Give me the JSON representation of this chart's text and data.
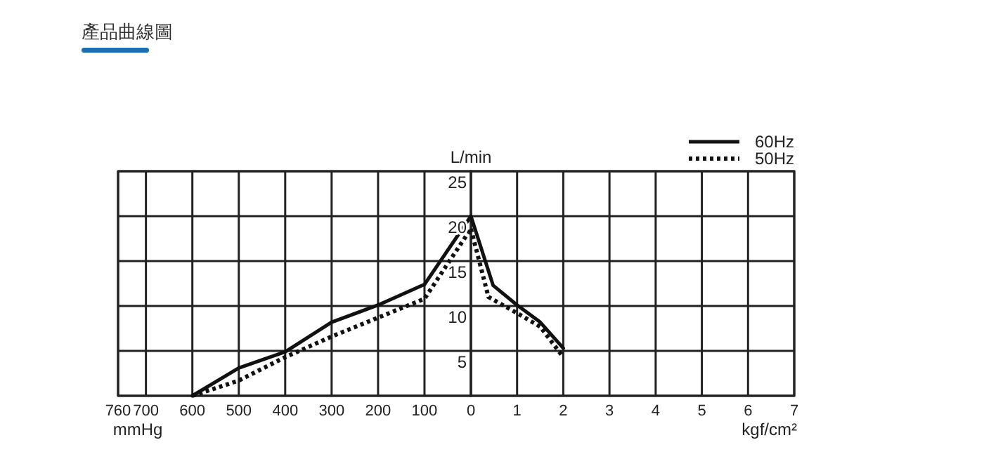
{
  "chart_data": [
    {
      "type": "line",
      "title": "產品曲線圖",
      "xlabel": "mmHg",
      "xlim": [
        760,
        0
      ],
      "xticks": [
        760,
        700,
        600,
        500,
        400,
        300,
        200,
        100
      ],
      "ylim": [
        0,
        25
      ],
      "tick_labels": "x",
      "grid": true,
      "marker": "none",
      "series": [
        {
          "color": "#111111",
          "line_style": "solid",
          "x": [
            600,
            500,
            400,
            300,
            200,
            100,
            0
          ],
          "values": [
            0,
            3.1,
            4.9,
            8.2,
            10.1,
            12.4,
            20
          ]
        },
        {
          "color": "#111111",
          "line_style": "dotted",
          "x": [
            600,
            500,
            400,
            300,
            200,
            100,
            0
          ],
          "values": [
            0,
            1.7,
            4.3,
            6.6,
            8.7,
            10.8,
            18.6
          ]
        }
      ]
    },
    {
      "type": "line",
      "xlabel": "kgf/cm²",
      "ylabel": "L/min",
      "xlim": [
        0,
        7
      ],
      "xticks": [
        0,
        1,
        2,
        3,
        4,
        5,
        6,
        7
      ],
      "ylim": [
        0,
        25
      ],
      "yticks": [
        {
          "value": 0,
          "label": null
        },
        5,
        10,
        15,
        20,
        25
      ],
      "grid": true,
      "legend": "top right",
      "marker": "none",
      "series": [
        {
          "name": "60Hz",
          "color": "#111111",
          "line_style": "solid",
          "x": [
            0,
            0.48,
            1,
            1.5,
            2
          ],
          "values": [
            20,
            12.3,
            10.1,
            8.2,
            5.3
          ]
        },
        {
          "name": "50Hz",
          "color": "#111111",
          "line_style": "dotted",
          "x": [
            0,
            0.38,
            1,
            1.5,
            2
          ],
          "values": [
            18.6,
            11,
            9.2,
            7.7,
            4.3
          ]
        }
      ]
    }
  ]
}
